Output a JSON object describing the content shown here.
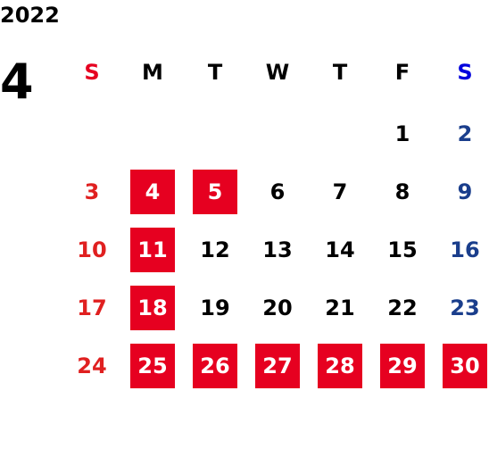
{
  "calendar": {
    "year": "2022",
    "month": "4",
    "weekday_headers": [
      "S",
      "M",
      "T",
      "W",
      "T",
      "F",
      "S"
    ],
    "header_colors": [
      "#e60020",
      "#000000",
      "#000000",
      "#000000",
      "#000000",
      "#000000",
      "#0000dd"
    ],
    "weeks": [
      [
        null,
        null,
        null,
        null,
        null,
        "1",
        "2"
      ],
      [
        "3",
        "4",
        "5",
        "6",
        "7",
        "8",
        "9"
      ],
      [
        "10",
        "11",
        "12",
        "13",
        "14",
        "15",
        "16"
      ],
      [
        "17",
        "18",
        "19",
        "20",
        "21",
        "22",
        "23"
      ],
      [
        "24",
        "25",
        "26",
        "27",
        "28",
        "29",
        "30"
      ]
    ],
    "highlighted_days": [
      "4",
      "5",
      "11",
      "18",
      "25",
      "26",
      "27",
      "28",
      "29",
      "30"
    ],
    "highlight_color": "#e60020",
    "sunday_color": "#e02020",
    "saturday_color": "#1a3e8c"
  }
}
